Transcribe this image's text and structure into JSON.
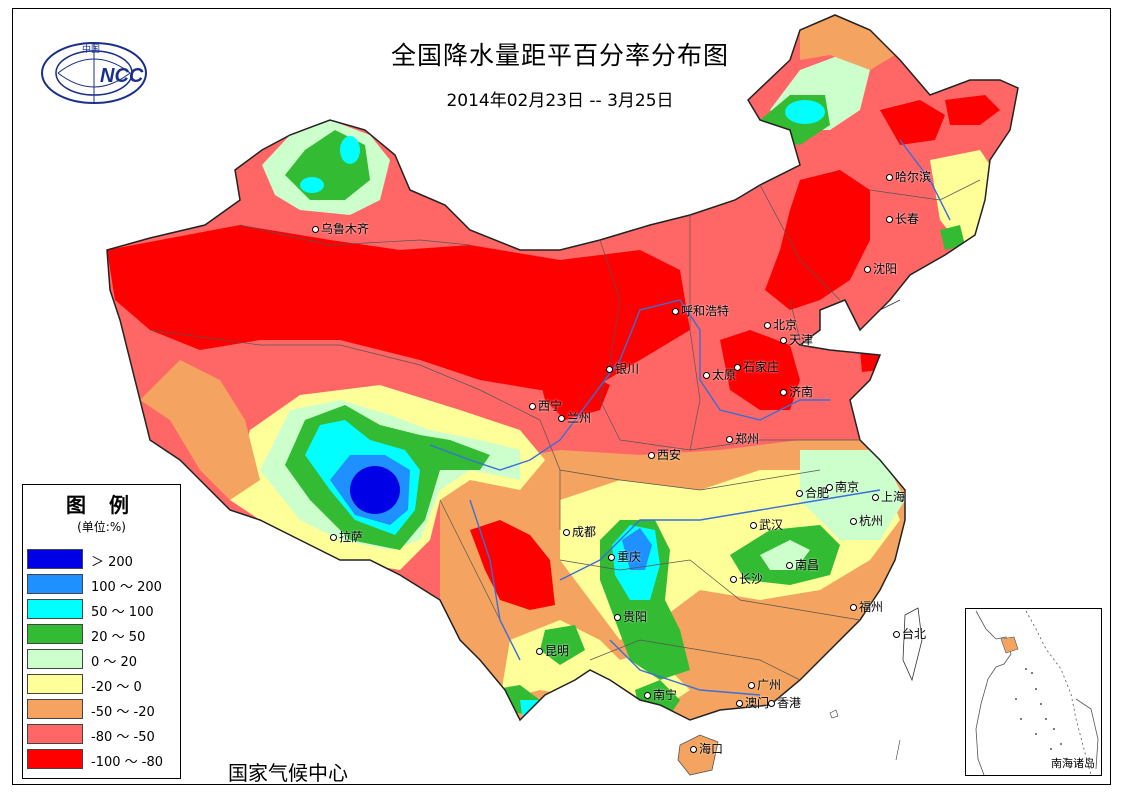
{
  "header": {
    "title": "全国降水量距平百分率分布图",
    "subtitle": "2014年02月23日 -- 3月25日"
  },
  "logo": {
    "text": "NCC",
    "top_text": "中国"
  },
  "footer": {
    "org": "国家气候中心"
  },
  "legend": {
    "title": "图 例",
    "unit": "(单位:%)",
    "items": [
      {
        "label": "＞ 200",
        "color": "#0000e6"
      },
      {
        "label": "100 ～ 200",
        "color": "#1e90ff"
      },
      {
        "label": "50 ～ 100",
        "color": "#00ffff"
      },
      {
        "label": "20 ～ 50",
        "color": "#33bb33"
      },
      {
        "label": "0 ～ 20",
        "color": "#ccffcc"
      },
      {
        "label": "-20 ～ 0",
        "color": "#ffff99"
      },
      {
        "label": "-50 ～ -20",
        "color": "#f4a460"
      },
      {
        "label": "-80 ～ -50",
        "color": "#ff6666"
      },
      {
        "label": "-100 ～ -80",
        "color": "#ff0000"
      }
    ]
  },
  "cities": [
    {
      "name": "乌鲁木齐"
    },
    {
      "name": "哈尔滨"
    },
    {
      "name": "长春"
    },
    {
      "name": "沈阳"
    },
    {
      "name": "呼和浩特"
    },
    {
      "name": "北京"
    },
    {
      "name": "天津"
    },
    {
      "name": "石家庄"
    },
    {
      "name": "太原"
    },
    {
      "name": "济南"
    },
    {
      "name": "银川"
    },
    {
      "name": "西宁"
    },
    {
      "name": "兰州"
    },
    {
      "name": "郑州"
    },
    {
      "name": "西安"
    },
    {
      "name": "合肥"
    },
    {
      "name": "南京"
    },
    {
      "name": "上海"
    },
    {
      "name": "杭州"
    },
    {
      "name": "武汉"
    },
    {
      "name": "成都"
    },
    {
      "name": "拉萨"
    },
    {
      "name": "重庆"
    },
    {
      "name": "长沙"
    },
    {
      "name": "南昌"
    },
    {
      "name": "贵阳"
    },
    {
      "name": "福州"
    },
    {
      "name": "台北"
    },
    {
      "name": "昆明"
    },
    {
      "name": "南宁"
    },
    {
      "name": "广州"
    },
    {
      "name": "澳门"
    },
    {
      "name": "香港"
    },
    {
      "name": "海口"
    }
  ],
  "inset": {
    "label": "南海诸岛"
  }
}
